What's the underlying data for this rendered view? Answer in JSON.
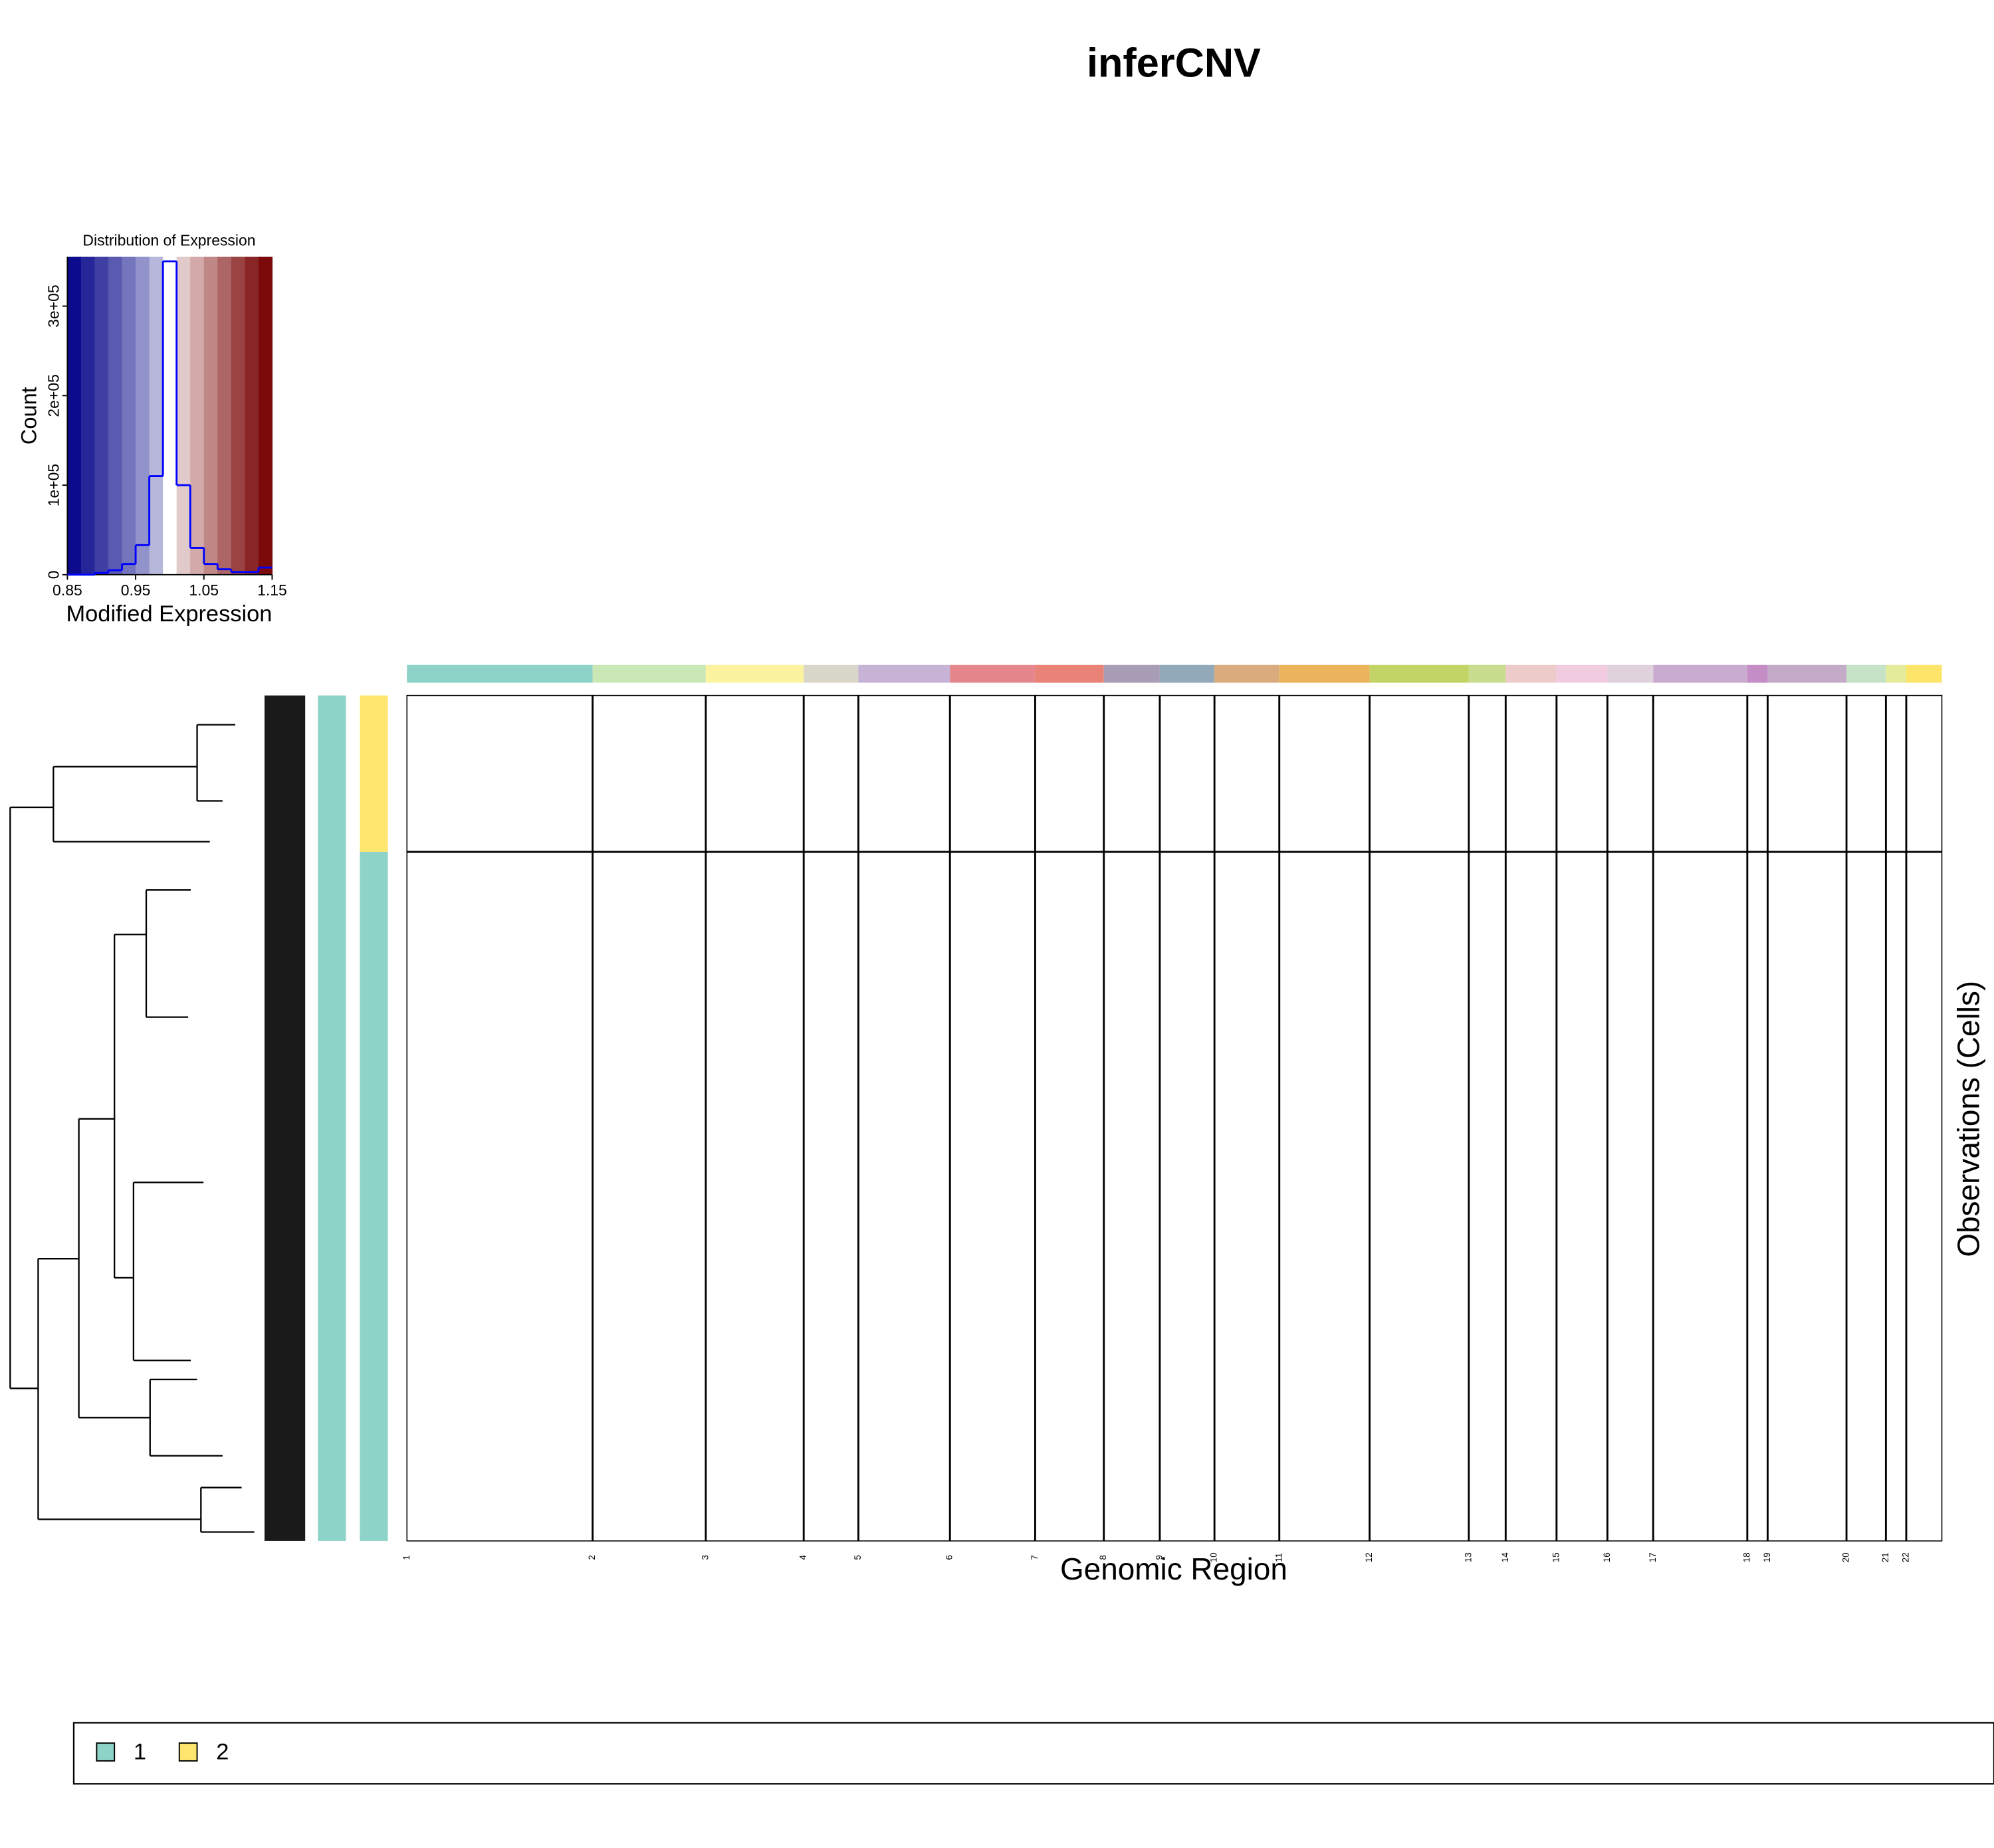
{
  "title": "inferCNV",
  "chart_data": [
    {
      "type": "histogram",
      "title": "Distribution of Expression",
      "xlabel": "Modified Expression",
      "ylabel": "Count",
      "bins": [
        0.85,
        0.87,
        0.89,
        0.91,
        0.93,
        0.95,
        0.97,
        0.99,
        1.01,
        1.03,
        1.05,
        1.07,
        1.09,
        1.11,
        1.13,
        1.15
      ],
      "counts": [
        0,
        0,
        2000,
        5000,
        12000,
        33000,
        110000,
        350000,
        100000,
        30000,
        12000,
        6000,
        3000,
        3000,
        8000
      ],
      "color": "#0000ff",
      "colorscale": [
        "#0b0b8c",
        "#262699",
        "#3f3fa4",
        "#5a5ab0",
        "#7575bd",
        "#9393cb",
        "#b7b7dc",
        "#ffffff",
        "#e3caca",
        "#d3a9a9",
        "#c08787",
        "#ad6565",
        "#9a4343",
        "#8a2525",
        "#7d0a0a"
      ],
      "xlim": [
        0.85,
        1.15
      ],
      "ylim": [
        0,
        355000
      ],
      "xticks": [
        0.85,
        0.95,
        1.05,
        1.15
      ],
      "yticks": [
        0,
        {
          "value": 100000,
          "label": "1e+05"
        },
        {
          "value": 200000,
          "label": "2e+05"
        },
        {
          "value": 300000,
          "label": "3e+05"
        }
      ]
    },
    {
      "type": "heatmap",
      "xlabel": "Genomic Region",
      "ylabel": "Observations (Cells)",
      "chromosomes": [
        {
          "label": "1",
          "color": "#8dd3c7"
        },
        {
          "label": "2",
          "color": "#c9e8b5"
        },
        {
          "label": "3",
          "color": "#fbf3a0"
        },
        {
          "label": "4",
          "color": "#d9d7c9"
        },
        {
          "label": "5",
          "color": "#c7b3d6"
        },
        {
          "label": "6",
          "color": "#e5868c"
        },
        {
          "label": "7",
          "color": "#ea8377"
        },
        {
          "label": "8",
          "color": "#a89db5"
        },
        {
          "label": "9",
          "color": "#92a9b9"
        },
        {
          "label": "10",
          "color": "#d9ab7d"
        },
        {
          "label": "11",
          "color": "#ebb45c"
        },
        {
          "label": "12",
          "color": "#c3d467"
        },
        {
          "label": "13",
          "color": "#c7dc8c"
        },
        {
          "label": "14",
          "color": "#eecbcb"
        },
        {
          "label": "15",
          "color": "#f1cce0"
        },
        {
          "label": "16",
          "color": "#e0d2dc"
        },
        {
          "label": "17",
          "color": "#c9abcf"
        },
        {
          "label": "18",
          "color": "#c58dc6"
        },
        {
          "label": "19",
          "color": "#c3aac7"
        },
        {
          "label": "20",
          "color": "#c6e2c7"
        },
        {
          "label": "21",
          "color": "#e4ec9b"
        },
        {
          "label": "22",
          "color": "#fde56a"
        }
      ],
      "legend": [
        {
          "label": "1",
          "color": "#8dd3c7"
        },
        {
          "label": "2",
          "color": "#ffe66d"
        }
      ]
    }
  ]
}
